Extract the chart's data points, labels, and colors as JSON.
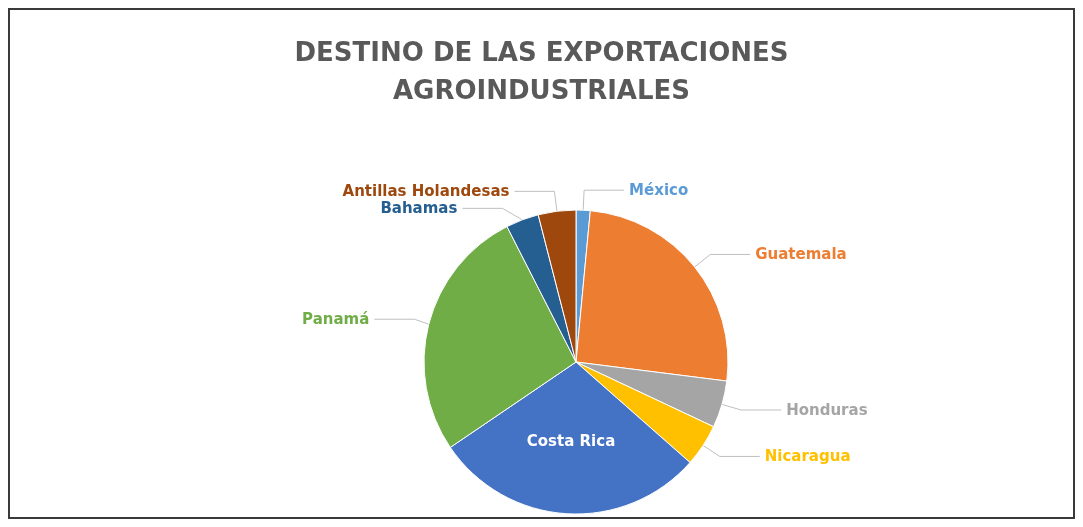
{
  "chart_data": {
    "type": "pie",
    "title": "DESTINO DE LAS EXPORTACIONES\nAGROINDUSTRIALES",
    "categories": [
      "México",
      "Guatemala",
      "Honduras",
      "Nicaragua",
      "Costa Rica",
      "Panamá",
      "Bahamas",
      "Antillas Holandesas"
    ],
    "values": [
      1.5,
      25.5,
      5,
      4.5,
      29,
      27,
      3.5,
      4
    ],
    "colors": [
      "#5b9bd5",
      "#ed7d31",
      "#a5a5a5",
      "#ffc000",
      "#4472c4",
      "#70ad47",
      "#255e91",
      "#9e480e"
    ],
    "legend": false
  }
}
